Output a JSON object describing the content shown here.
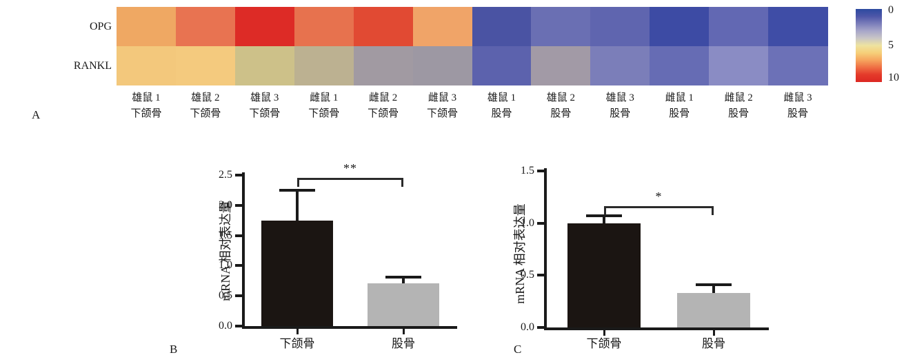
{
  "figure_title": "",
  "chart_data": [
    {
      "type": "heatmap",
      "panel_label": "A",
      "rows": [
        "OPG",
        "RANKL"
      ],
      "columns": [
        [
          "雄鼠 1",
          "下颌骨"
        ],
        [
          "雄鼠 2",
          "下颌骨"
        ],
        [
          "雄鼠 3",
          "下颌骨"
        ],
        [
          "雌鼠 1",
          "下颌骨"
        ],
        [
          "雌鼠 2",
          "下颌骨"
        ],
        [
          "雌鼠 3",
          "下颌骨"
        ],
        [
          "雄鼠 1",
          "股骨"
        ],
        [
          "雄鼠 2",
          "股骨"
        ],
        [
          "雄鼠 3",
          "股骨"
        ],
        [
          "雌鼠 1",
          "股骨"
        ],
        [
          "雌鼠 2",
          "股骨"
        ],
        [
          "雌鼠 3",
          "股骨"
        ]
      ],
      "values": [
        [
          6.6,
          7.8,
          9.6,
          7.7,
          8.7,
          6.6,
          1.0,
          1.8,
          1.5,
          0.5,
          1.7,
          0.6
        ],
        [
          5.6,
          5.6,
          4.6,
          4.1,
          3.1,
          3.0,
          1.4,
          3.0,
          2.2,
          1.5,
          2.4,
          1.6
        ]
      ],
      "cell_colors": [
        [
          "#efa863",
          "#e87351",
          "#dd2b26",
          "#e7724e",
          "#e14a33",
          "#f0a468",
          "#4a53a3",
          "#6a6fb3",
          "#5f65af",
          "#3d4ba4",
          "#6268b3",
          "#3f4da6"
        ],
        [
          "#f3c87c",
          "#f4ca7e",
          "#cdc189",
          "#bcb191",
          "#a19aa2",
          "#9d98a3",
          "#5c62ad",
          "#a29aa6",
          "#7b7eb9",
          "#666cb4",
          "#8a8cc4",
          "#6c71b7"
        ]
      ],
      "colorbar": {
        "labels": [
          "0",
          "5",
          "10"
        ],
        "top_value": 0,
        "bottom_value": 10,
        "gradient": [
          "#2c4aa0",
          "#4d56a8",
          "#7b7eba",
          "#a7a6c9",
          "#c9c6c6",
          "#eee3a0",
          "#f6cf79",
          "#f6a55e",
          "#ef6f44",
          "#e43a2a",
          "#dc2823"
        ]
      }
    },
    {
      "type": "bar",
      "panel_label": "B",
      "ylabel": "mRNA 相对表达量",
      "categories": [
        "下颌骨",
        "股骨"
      ],
      "values": [
        1.75,
        0.71
      ],
      "errors_upper": [
        0.5,
        0.1
      ],
      "ylim": [
        0,
        2.5
      ],
      "yticks": [
        "0.0",
        "0.5",
        "1.0",
        "1.5",
        "2.0",
        "2.5"
      ],
      "bar_colors": [
        "#1b1512",
        "#b4b4b4"
      ],
      "significance": {
        "symbol": "**",
        "y": 2.45
      }
    },
    {
      "type": "bar",
      "panel_label": "C",
      "ylabel": "mRNA 相对表达量",
      "categories": [
        "下颌骨",
        "股骨"
      ],
      "values": [
        1.0,
        0.33
      ],
      "errors_upper": [
        0.07,
        0.08
      ],
      "ylim": [
        0,
        1.5
      ],
      "yticks": [
        "0.0",
        "0.5",
        "1.0",
        "1.5"
      ],
      "bar_colors": [
        "#1b1512",
        "#b4b4b4"
      ],
      "significance": {
        "symbol": "*",
        "y": 1.16
      }
    }
  ]
}
